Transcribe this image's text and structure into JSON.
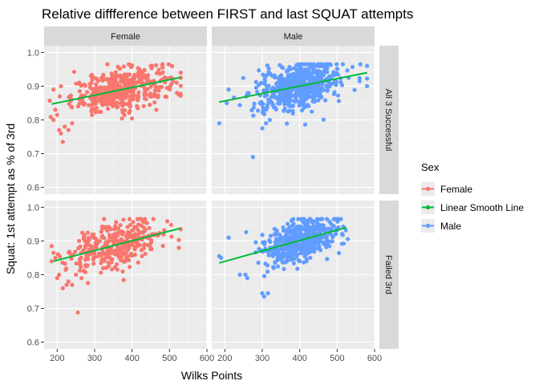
{
  "chart_data": {
    "type": "scatter",
    "title": "Relative diffference between FIRST and last SQUAT attempts",
    "xlabel": "Wilks Points",
    "ylabel": "Squat: 1st attempt as % of 3rd",
    "xlim": [
      165,
      600
    ],
    "ylim": [
      0.58,
      1.02
    ],
    "x_ticks": [
      200,
      300,
      400,
      500,
      600
    ],
    "y_ticks": [
      0.6,
      0.7,
      0.8,
      0.9,
      1.0
    ],
    "y_tick_labels": [
      "0.6",
      "0.7",
      "0.8",
      "0.9",
      "1.0"
    ],
    "col_facets": [
      "Female",
      "Male"
    ],
    "row_facets": [
      "All 3 Successful",
      "Failed 3rd"
    ],
    "grid": true,
    "legend": {
      "title": "Sex",
      "position": "right",
      "entries": [
        {
          "label": "Female",
          "color": "#F8766D",
          "kind": "point"
        },
        {
          "label": "Linear Smooth Line",
          "color": "#00BA38",
          "kind": "line"
        },
        {
          "label": "Male",
          "color": "#619CFF",
          "kind": "point"
        }
      ]
    },
    "panels": [
      {
        "row": 0,
        "col": 0,
        "sex": "Female",
        "n": 420,
        "x_center": 370,
        "x_sd": 65,
        "x_range": [
          180,
          530
        ],
        "fit": {
          "x": [
            185,
            530
          ],
          "y": [
            0.847,
            0.926
          ]
        },
        "resid_sd": 0.03,
        "outliers": [
          [
            190,
            0.8
          ],
          [
            205,
            0.77
          ],
          [
            210,
            0.76
          ],
          [
            215,
            0.735
          ],
          [
            220,
            0.78
          ],
          [
            230,
            0.77
          ],
          [
            240,
            0.79
          ],
          [
            200,
            0.815
          ],
          [
            195,
            0.83
          ],
          [
            530,
            0.94
          ],
          [
            525,
            0.875
          ],
          [
            520,
            0.88
          ],
          [
            190,
            0.89
          ],
          [
            210,
            0.9
          ]
        ]
      },
      {
        "row": 0,
        "col": 1,
        "sex": "Male",
        "n": 650,
        "x_center": 395,
        "x_sd": 55,
        "x_range": [
          180,
          580
        ],
        "fit": {
          "x": [
            185,
            580
          ],
          "y": [
            0.853,
            0.94
          ]
        },
        "resid_sd": 0.032,
        "outliers": [
          [
            275,
            0.69
          ],
          [
            185,
            0.79
          ],
          [
            205,
            0.85
          ],
          [
            210,
            0.89
          ],
          [
            580,
            0.9
          ],
          [
            560,
            0.915
          ],
          [
            300,
            0.775
          ],
          [
            310,
            0.79
          ],
          [
            320,
            0.8
          ]
        ]
      },
      {
        "row": 1,
        "col": 0,
        "sex": "Female",
        "n": 330,
        "x_center": 360,
        "x_sd": 65,
        "x_range": [
          185,
          530
        ],
        "fit": {
          "x": [
            190,
            530
          ],
          "y": [
            0.84,
            0.938
          ]
        },
        "resid_sd": 0.034,
        "outliers": [
          [
            255,
            0.688
          ],
          [
            200,
            0.79
          ],
          [
            205,
            0.8
          ],
          [
            215,
            0.76
          ],
          [
            225,
            0.77
          ],
          [
            230,
            0.78
          ],
          [
            240,
            0.77
          ],
          [
            250,
            0.8
          ],
          [
            265,
            0.79
          ],
          [
            525,
            0.88
          ],
          [
            530,
            0.935
          ],
          [
            190,
            0.865
          ],
          [
            195,
            0.85
          ]
        ]
      },
      {
        "row": 1,
        "col": 1,
        "sex": "Male",
        "n": 520,
        "x_center": 400,
        "x_sd": 50,
        "x_range": [
          180,
          530
        ],
        "fit": {
          "x": [
            185,
            525
          ],
          "y": [
            0.835,
            0.94
          ]
        },
        "resid_sd": 0.032,
        "outliers": [
          [
            305,
            0.735
          ],
          [
            300,
            0.745
          ],
          [
            315,
            0.745
          ],
          [
            185,
            0.855
          ],
          [
            190,
            0.85
          ],
          [
            210,
            0.91
          ],
          [
            240,
            0.8
          ],
          [
            255,
            0.8
          ],
          [
            260,
            0.79
          ]
        ]
      }
    ]
  }
}
